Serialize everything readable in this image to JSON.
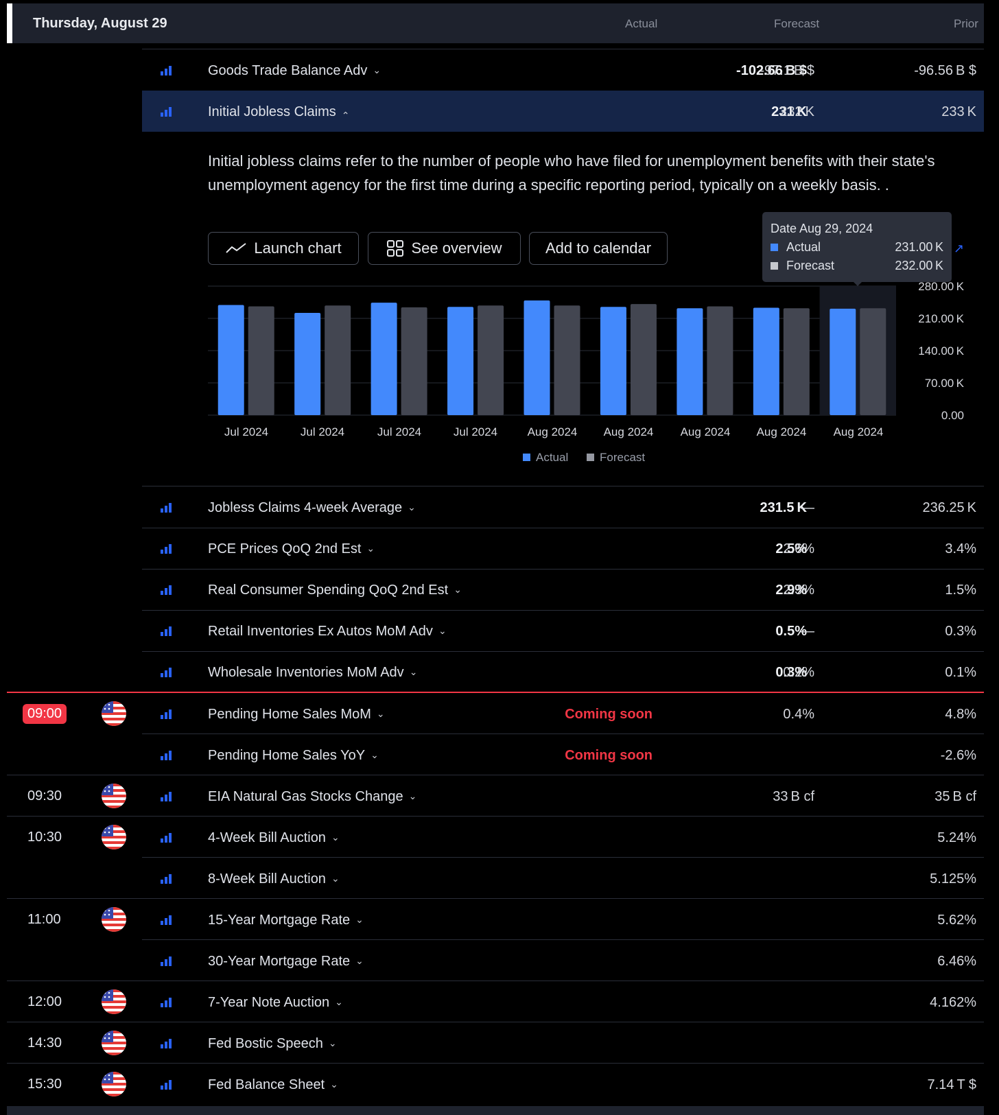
{
  "header": {
    "date": "Thursday, August 29",
    "col_actual": "Actual",
    "col_forecast": "Forecast",
    "col_prior": "Prior"
  },
  "events_top": [
    {
      "name": "Goods Trade Balance Adv",
      "actual": "-102.66 B $",
      "forecast": "-97.1 B $",
      "prior": "-96.56 B $"
    }
  ],
  "selected": {
    "name": "Initial Jobless Claims",
    "actual": "231 K",
    "forecast": "232 K",
    "prior": "233 K"
  },
  "description": "Initial jobless claims refer to the number of people who have filed for unemployment benefits with their state's unemployment agency for the first time during a specific reporting period, typically on a weekly basis. .",
  "buttons": {
    "launch": "Launch chart",
    "overview": "See overview",
    "calendar": "Add to calendar"
  },
  "tooltip": {
    "date": "Date Aug 29, 2024",
    "actual_label": "Actual",
    "actual_value": "231.00 K",
    "forecast_label": "Forecast",
    "forecast_value": "232.00 K"
  },
  "chart_data": {
    "type": "bar",
    "categories": [
      "Jul 2024",
      "Jul 2024",
      "Jul 2024",
      "Jul 2024",
      "Aug 2024",
      "Aug 2024",
      "Aug 2024",
      "Aug 2024",
      "Aug 2024"
    ],
    "series": [
      {
        "name": "Actual",
        "values": [
          239,
          222,
          244,
          235,
          249,
          235,
          232,
          233,
          231
        ]
      },
      {
        "name": "Forecast",
        "values": [
          236,
          238,
          234,
          238,
          238,
          241,
          236,
          232,
          232
        ]
      }
    ],
    "y_ticks": [
      "280.00 K",
      "210.00 K",
      "140.00 K",
      "70.00 K",
      "0.00"
    ],
    "ylim": [
      0,
      280
    ],
    "legend": [
      "Actual",
      "Forecast"
    ],
    "colors": {
      "actual": "#4389fc",
      "forecast": "#434651"
    }
  },
  "events_rest": [
    {
      "name": "Jobless Claims 4-week Average",
      "actual": "231.5 K",
      "forecast": "—",
      "prior": "236.25 K"
    },
    {
      "name": "PCE Prices QoQ 2nd Est",
      "actual": "2.5%",
      "forecast": "2.6%",
      "prior": "3.4%"
    },
    {
      "name": "Real Consumer Spending QoQ 2nd Est",
      "actual": "2.9%",
      "forecast": "2.3%",
      "prior": "1.5%"
    },
    {
      "name": "Retail Inventories Ex Autos MoM Adv",
      "actual": "0.5%",
      "forecast": "—",
      "prior": "0.3%"
    },
    {
      "name": "Wholesale Inventories MoM Adv",
      "actual": "0.3%",
      "forecast": "0.2%",
      "prior": "0.1%"
    }
  ],
  "scheduled": [
    {
      "time": "09:00",
      "name": "Pending Home Sales MoM",
      "actual": "Coming soon",
      "forecast": "0.4%",
      "prior": "4.8%"
    },
    {
      "time": "",
      "name": "Pending Home Sales YoY",
      "actual": "Coming soon",
      "forecast": "",
      "prior": "-2.6%"
    },
    {
      "time": "09:30",
      "name": "EIA Natural Gas Stocks Change",
      "actual": "",
      "forecast": "33 B cf",
      "prior": "35 B cf"
    },
    {
      "time": "10:30",
      "name": "4-Week Bill Auction",
      "actual": "",
      "forecast": "",
      "prior": "5.24%"
    },
    {
      "time": "",
      "name": "8-Week Bill Auction",
      "actual": "",
      "forecast": "",
      "prior": "5.125%"
    },
    {
      "time": "11:00",
      "name": "15-Year Mortgage Rate",
      "actual": "",
      "forecast": "",
      "prior": "5.62%"
    },
    {
      "time": "",
      "name": "30-Year Mortgage Rate",
      "actual": "",
      "forecast": "",
      "prior": "6.46%"
    },
    {
      "time": "12:00",
      "name": "7-Year Note Auction",
      "actual": "",
      "forecast": "",
      "prior": "4.162%"
    },
    {
      "time": "14:30",
      "name": "Fed Bostic Speech",
      "actual": "",
      "forecast": "",
      "prior": ""
    },
    {
      "time": "15:30",
      "name": "Fed Balance Sheet",
      "actual": "",
      "forecast": "",
      "prior": "7.14 T $"
    }
  ]
}
